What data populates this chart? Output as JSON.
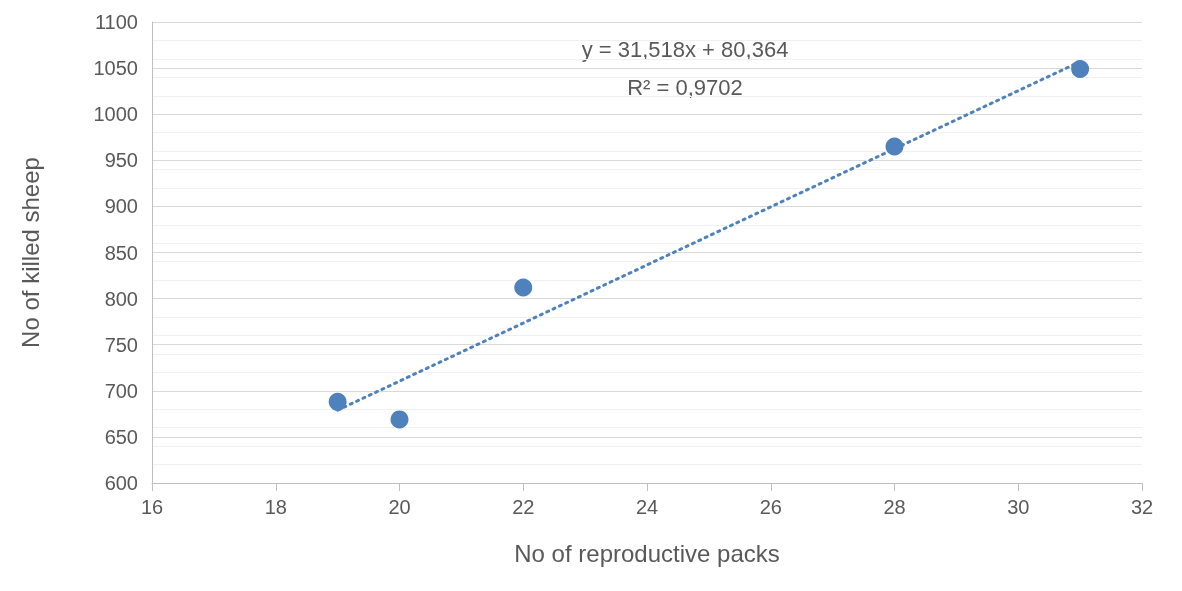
{
  "chart_data": {
    "type": "scatter",
    "xlabel": "No of reproductive packs",
    "ylabel": "No of killed sheep",
    "annotations": [
      "y = 31,518x + 80,364",
      "R² = 0,9702"
    ],
    "series": [
      {
        "color": "#4f81bd",
        "x": [
          19,
          20,
          22,
          28,
          31
        ],
        "values": [
          688,
          669,
          812,
          965,
          1049
        ],
        "marker": "circle"
      },
      {
        "type": "line",
        "color": "#4f81bd",
        "x": [
          19,
          31
        ],
        "values": [
          679,
          1057
        ],
        "line_style": "dotted",
        "marker": "none"
      }
    ],
    "xlim": [
      16,
      32
    ],
    "xticks": [
      16,
      18,
      20,
      22,
      24,
      26,
      28,
      30,
      32
    ],
    "ylim": [
      600,
      1100
    ],
    "yticks": [
      600,
      650,
      700,
      750,
      800,
      850,
      900,
      950,
      1000,
      1050,
      1100
    ],
    "grid": "y"
  }
}
